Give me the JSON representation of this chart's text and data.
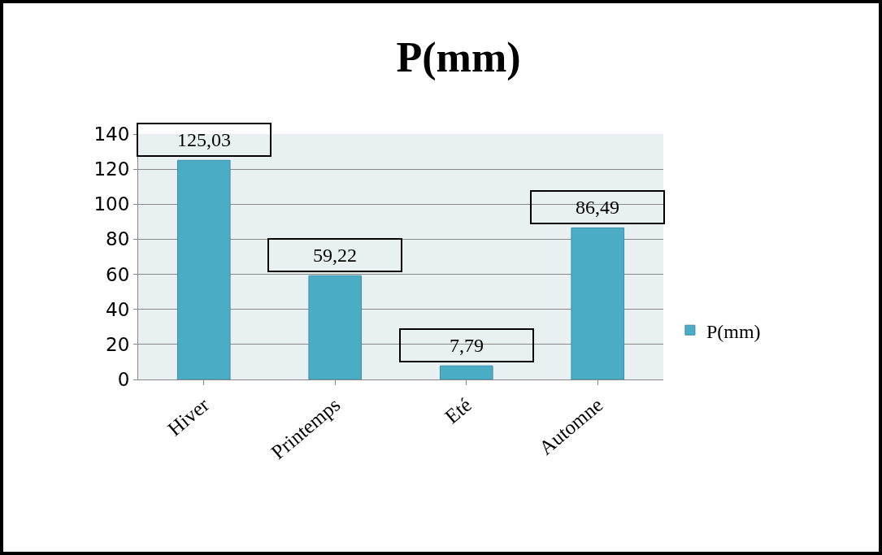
{
  "chart_data": {
    "type": "bar",
    "title": "P(mm)",
    "categories": [
      "Hiver",
      "Printemps",
      "Eté",
      "Automne"
    ],
    "series": [
      {
        "name": "P(mm)",
        "color": "#4bacc6",
        "values": [
          125.03,
          59.22,
          7.79,
          86.49
        ],
        "value_labels": [
          "125,03",
          "59,22",
          "7,79",
          "86,49"
        ]
      }
    ],
    "ylim": [
      0,
      140
    ],
    "yticks": [
      0,
      20,
      40,
      60,
      80,
      100,
      120,
      140
    ],
    "grid": "y",
    "legend": "right"
  }
}
